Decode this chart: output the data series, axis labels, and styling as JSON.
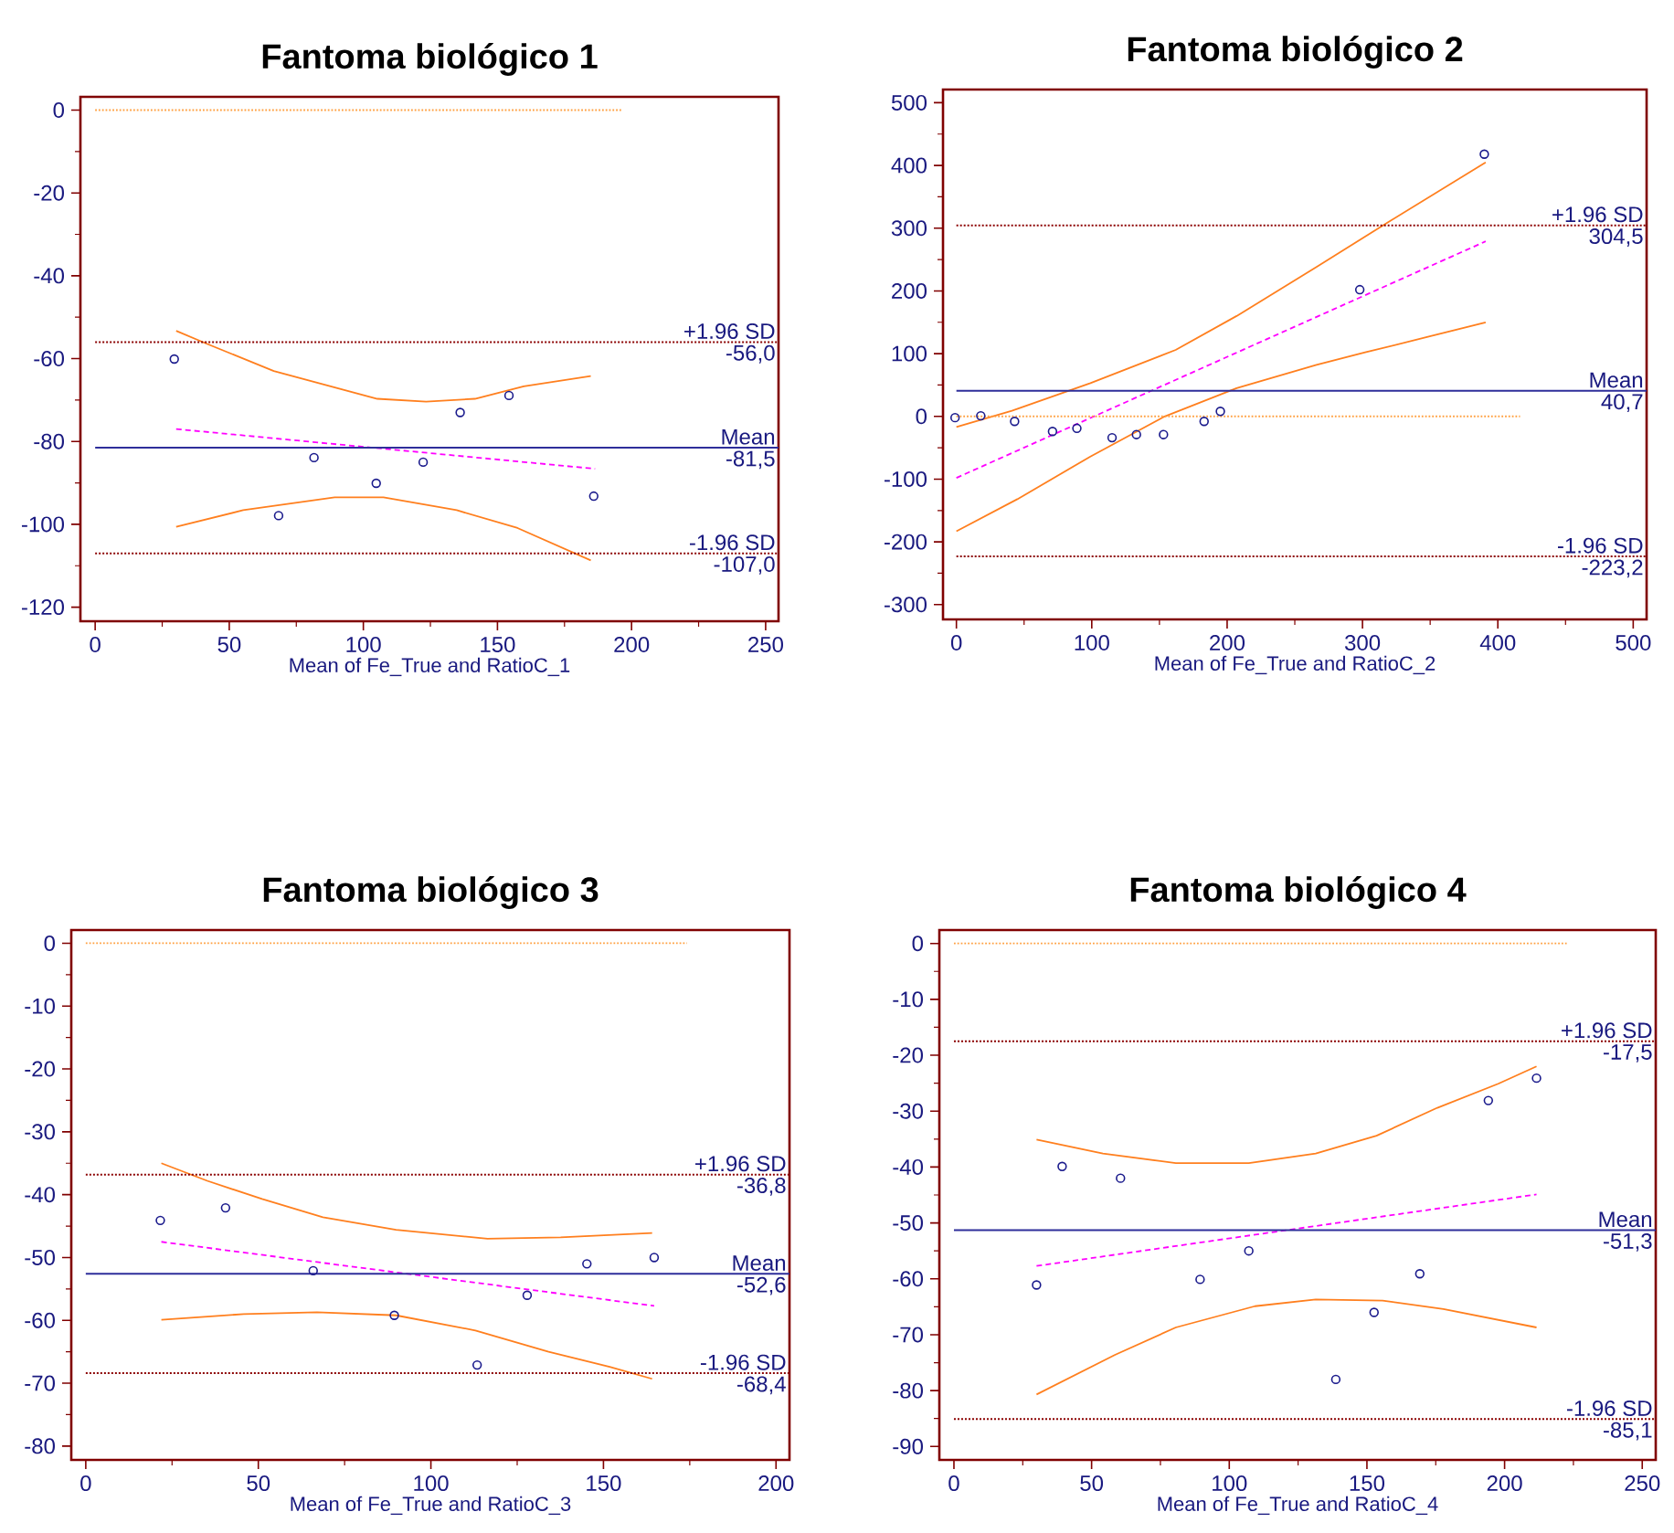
{
  "chart_data": [
    {
      "type": "scatter",
      "title": "Fantoma biológico 1",
      "xlabel": "Mean of Fe_True and RatioC_1",
      "xlim": [
        -5.5,
        254.8
      ],
      "ylim": [
        -123.4,
        3.2
      ],
      "xticks": [
        0,
        50,
        100,
        150,
        200,
        250
      ],
      "yticks": [
        -120,
        -100,
        -80,
        -60,
        -40,
        -20,
        0
      ],
      "series": [
        {
          "type": "scatter",
          "color": "#1a1a8c",
          "marker": "circle",
          "x": [
            29.5,
            68.4,
            81.6,
            104.8,
            122.3,
            136.1,
            154.3,
            185.9
          ],
          "values": [
            -60.1,
            -97.9,
            -83.9,
            -90.1,
            -85.0,
            -73.0,
            -68.9,
            -93.2
          ]
        },
        {
          "type": "line",
          "color": "#ff00ff",
          "line_style": "dashed",
          "x": [
            30.2,
            186.4
          ],
          "values": [
            -77.0,
            -86.6
          ]
        },
        {
          "type": "line",
          "color": "#ff7f1e",
          "line_style": "solid",
          "x": [
            30.2,
            41.6,
            66.6,
            105.2,
            123.4,
            141.6,
            159.8,
            184.8
          ],
          "values": [
            -53.3,
            -56.4,
            -63.0,
            -69.7,
            -70.4,
            -69.7,
            -66.7,
            -64.2
          ]
        },
        {
          "type": "line",
          "color": "#ff7f1e",
          "line_style": "solid",
          "x": [
            30.2,
            55.2,
            89.3,
            107.5,
            134.8,
            157.5,
            184.8
          ],
          "values": [
            -100.6,
            -96.6,
            -93.5,
            -93.5,
            -96.6,
            -100.9,
            -108.7
          ]
        },
        {
          "type": "line",
          "color": "#ffa040",
          "line_style": "dotted",
          "x": [
            0,
            196.6
          ],
          "values": [
            0,
            0
          ]
        }
      ],
      "ref_lines": [
        {
          "axis": "y",
          "value": -56.0,
          "label": "+1.96 SD",
          "color": "#8b0000",
          "line_style": "dotted"
        },
        {
          "axis": "y",
          "value": -81.5,
          "label": "Mean",
          "color": "#2e2e9a",
          "line_style": "solid"
        },
        {
          "axis": "y",
          "value": -107.0,
          "label": "-1.96 SD",
          "color": "#8b0000",
          "line_style": "dotted"
        }
      ],
      "annotations": [
        {
          "text": "-56,0",
          "y": -56.0
        },
        {
          "text": "-81,5",
          "y": -81.5
        },
        {
          "text": "-107,0",
          "y": -107.0
        }
      ]
    },
    {
      "type": "scatter",
      "title": "Fantoma biológico 2",
      "xlabel": "Mean of Fe_True and RatioC_2",
      "xlim": [
        -9.9,
        509.9
      ],
      "ylim": [
        -323.6,
        521
      ],
      "xticks": [
        0,
        100,
        200,
        300,
        400,
        500
      ],
      "yticks": [
        -300,
        -200,
        -100,
        0,
        100,
        200,
        300,
        400,
        500
      ],
      "series": [
        {
          "type": "scatter",
          "color": "#1a1a8c",
          "marker": "circle",
          "x": [
            -1,
            18,
            43,
            71,
            89,
            115,
            133,
            153,
            183,
            195,
            298,
            390
          ],
          "values": [
            -2,
            1,
            -8,
            -24,
            -19,
            -34,
            -29,
            -29,
            -8,
            8,
            202,
            418
          ]
        },
        {
          "type": "line",
          "color": "#ff00ff",
          "line_style": "dashed",
          "x": [
            0,
            391
          ],
          "values": [
            -98,
            279
          ]
        },
        {
          "type": "line",
          "color": "#ff7f1e",
          "line_style": "solid",
          "x": [
            0,
            41,
            99,
            162,
            207,
            266,
            320,
            391
          ],
          "values": [
            -17,
            9,
            53,
            106,
            160,
            238,
            311,
            405
          ]
        },
        {
          "type": "line",
          "color": "#ff7f1e",
          "line_style": "solid",
          "x": [
            0,
            45,
            99,
            153,
            207,
            266,
            302,
            347,
            391
          ],
          "values": [
            -183,
            -132,
            -64,
            -1,
            45,
            82,
            102,
            126,
            150
          ]
        },
        {
          "type": "line",
          "color": "#ffa040",
          "line_style": "dotted",
          "x": [
            0,
            416.4
          ],
          "values": [
            0,
            0
          ]
        }
      ],
      "ref_lines": [
        {
          "axis": "y",
          "value": 304.5,
          "label": "+1.96 SD",
          "color": "#8b0000",
          "line_style": "dotted"
        },
        {
          "axis": "y",
          "value": 40.7,
          "label": "Mean",
          "color": "#2e2e9a",
          "line_style": "solid"
        },
        {
          "axis": "y",
          "value": -223.2,
          "label": "-1.96 SD",
          "color": "#8b0000",
          "line_style": "dotted"
        }
      ],
      "annotations": [
        {
          "text": "304,5",
          "y": 304.5
        },
        {
          "text": "40,7",
          "y": 40.7
        },
        {
          "text": "-223,2",
          "y": -223.2
        }
      ]
    },
    {
      "type": "scatter",
      "title": "Fantoma biológico 3",
      "xlabel": "Mean of Fe_True and RatioC_3",
      "xlim": [
        -4.2,
        203.9
      ],
      "ylim": [
        -82.2,
        2.1
      ],
      "xticks": [
        0,
        50,
        100,
        150,
        200
      ],
      "yticks": [
        -80,
        -70,
        -60,
        -50,
        -40,
        -30,
        -20,
        -10,
        0
      ],
      "series": [
        {
          "type": "scatter",
          "color": "#1a1a8c",
          "marker": "circle",
          "x": [
            21.6,
            40.5,
            65.9,
            89.4,
            113.4,
            127.9,
            145.2,
            164.7
          ],
          "values": [
            -44.1,
            -42.1,
            -52.1,
            -59.2,
            -67.1,
            -56.0,
            -51.0,
            -50.0
          ]
        },
        {
          "type": "line",
          "color": "#ff00ff",
          "line_style": "dashed",
          "x": [
            21.9,
            164.7
          ],
          "values": [
            -47.5,
            -57.7
          ]
        },
        {
          "type": "line",
          "color": "#ff7f1e",
          "line_style": "solid",
          "x": [
            21.9,
            35.2,
            51.1,
            68.7,
            89.9,
            116.4,
            137.6,
            164.1
          ],
          "values": [
            -35.0,
            -37.8,
            -40.7,
            -43.6,
            -45.6,
            -47.0,
            -46.8,
            -46.1
          ]
        },
        {
          "type": "line",
          "color": "#ff7f1e",
          "line_style": "solid",
          "x": [
            21.9,
            45.8,
            67.0,
            89.9,
            112.9,
            134.1,
            151.8,
            164.1
          ],
          "values": [
            -59.9,
            -59.0,
            -58.7,
            -59.2,
            -61.6,
            -65.0,
            -67.4,
            -69.3
          ]
        },
        {
          "type": "line",
          "color": "#ffa040",
          "line_style": "dotted",
          "x": [
            0,
            174.2
          ],
          "values": [
            0,
            0
          ]
        }
      ],
      "ref_lines": [
        {
          "axis": "y",
          "value": -36.8,
          "label": "+1.96 SD",
          "color": "#8b0000",
          "line_style": "dotted"
        },
        {
          "axis": "y",
          "value": -52.6,
          "label": "Mean",
          "color": "#2e2e9a",
          "line_style": "solid"
        },
        {
          "axis": "y",
          "value": -68.4,
          "label": "-1.96 SD",
          "color": "#8b0000",
          "line_style": "dotted"
        }
      ],
      "annotations": [
        {
          "text": "-36,8",
          "y": -36.8
        },
        {
          "text": "-52,6",
          "y": -52.6
        },
        {
          "text": "-68,4",
          "y": -68.4
        }
      ]
    },
    {
      "type": "scatter",
      "title": "Fantoma biológico 4",
      "xlabel": "Mean of Fe_True and RatioC_4",
      "xlim": [
        -5.3,
        254.9
      ],
      "ylim": [
        -92.4,
        2.4
      ],
      "xticks": [
        0,
        50,
        100,
        150,
        200,
        250
      ],
      "yticks": [
        -90,
        -80,
        -70,
        -60,
        -50,
        -40,
        -30,
        -20,
        -10,
        0
      ],
      "series": [
        {
          "type": "scatter",
          "color": "#1a1a8c",
          "marker": "circle",
          "x": [
            30.0,
            39.3,
            60.5,
            89.4,
            107.1,
            138.7,
            152.6,
            169.2,
            194.1,
            211.6
          ],
          "values": [
            -61.1,
            -39.9,
            -42.0,
            -60.1,
            -55.0,
            -78.0,
            -66.0,
            -59.1,
            -28.1,
            -24.1
          ]
        },
        {
          "type": "line",
          "color": "#ff00ff",
          "line_style": "dashed",
          "x": [
            30.0,
            211.6
          ],
          "values": [
            -57.7,
            -44.9
          ]
        },
        {
          "type": "line",
          "color": "#ff7f1e",
          "line_style": "solid",
          "x": [
            30,
            54.1,
            80.6,
            107.1,
            131.4,
            153.5,
            175.6,
            197.7,
            211.6
          ],
          "values": [
            -35.1,
            -37.6,
            -39.3,
            -39.3,
            -37.6,
            -34.4,
            -29.4,
            -25.1,
            -22.0
          ]
        },
        {
          "type": "line",
          "color": "#ff7f1e",
          "line_style": "solid",
          "x": [
            30,
            58.5,
            80.6,
            109.3,
            131.4,
            155.7,
            177.8,
            211.6
          ],
          "values": [
            -80.7,
            -73.6,
            -68.7,
            -64.9,
            -63.7,
            -63.9,
            -65.4,
            -68.7
          ]
        },
        {
          "type": "line",
          "color": "#ffa040",
          "line_style": "dotted",
          "x": [
            0,
            223.1
          ],
          "values": [
            0,
            0
          ]
        }
      ],
      "ref_lines": [
        {
          "axis": "y",
          "value": -17.5,
          "label": "+1.96 SD",
          "color": "#8b0000",
          "line_style": "dotted"
        },
        {
          "axis": "y",
          "value": -51.3,
          "label": "Mean",
          "color": "#2e2e9a",
          "line_style": "solid"
        },
        {
          "axis": "y",
          "value": -85.1,
          "label": "-1.96 SD",
          "color": "#8b0000",
          "line_style": "dotted"
        }
      ],
      "annotations": [
        {
          "text": "-17,5",
          "y": -17.5
        },
        {
          "text": "-51,3",
          "y": -51.3
        },
        {
          "text": "-85,1",
          "y": -85.1
        }
      ]
    }
  ]
}
